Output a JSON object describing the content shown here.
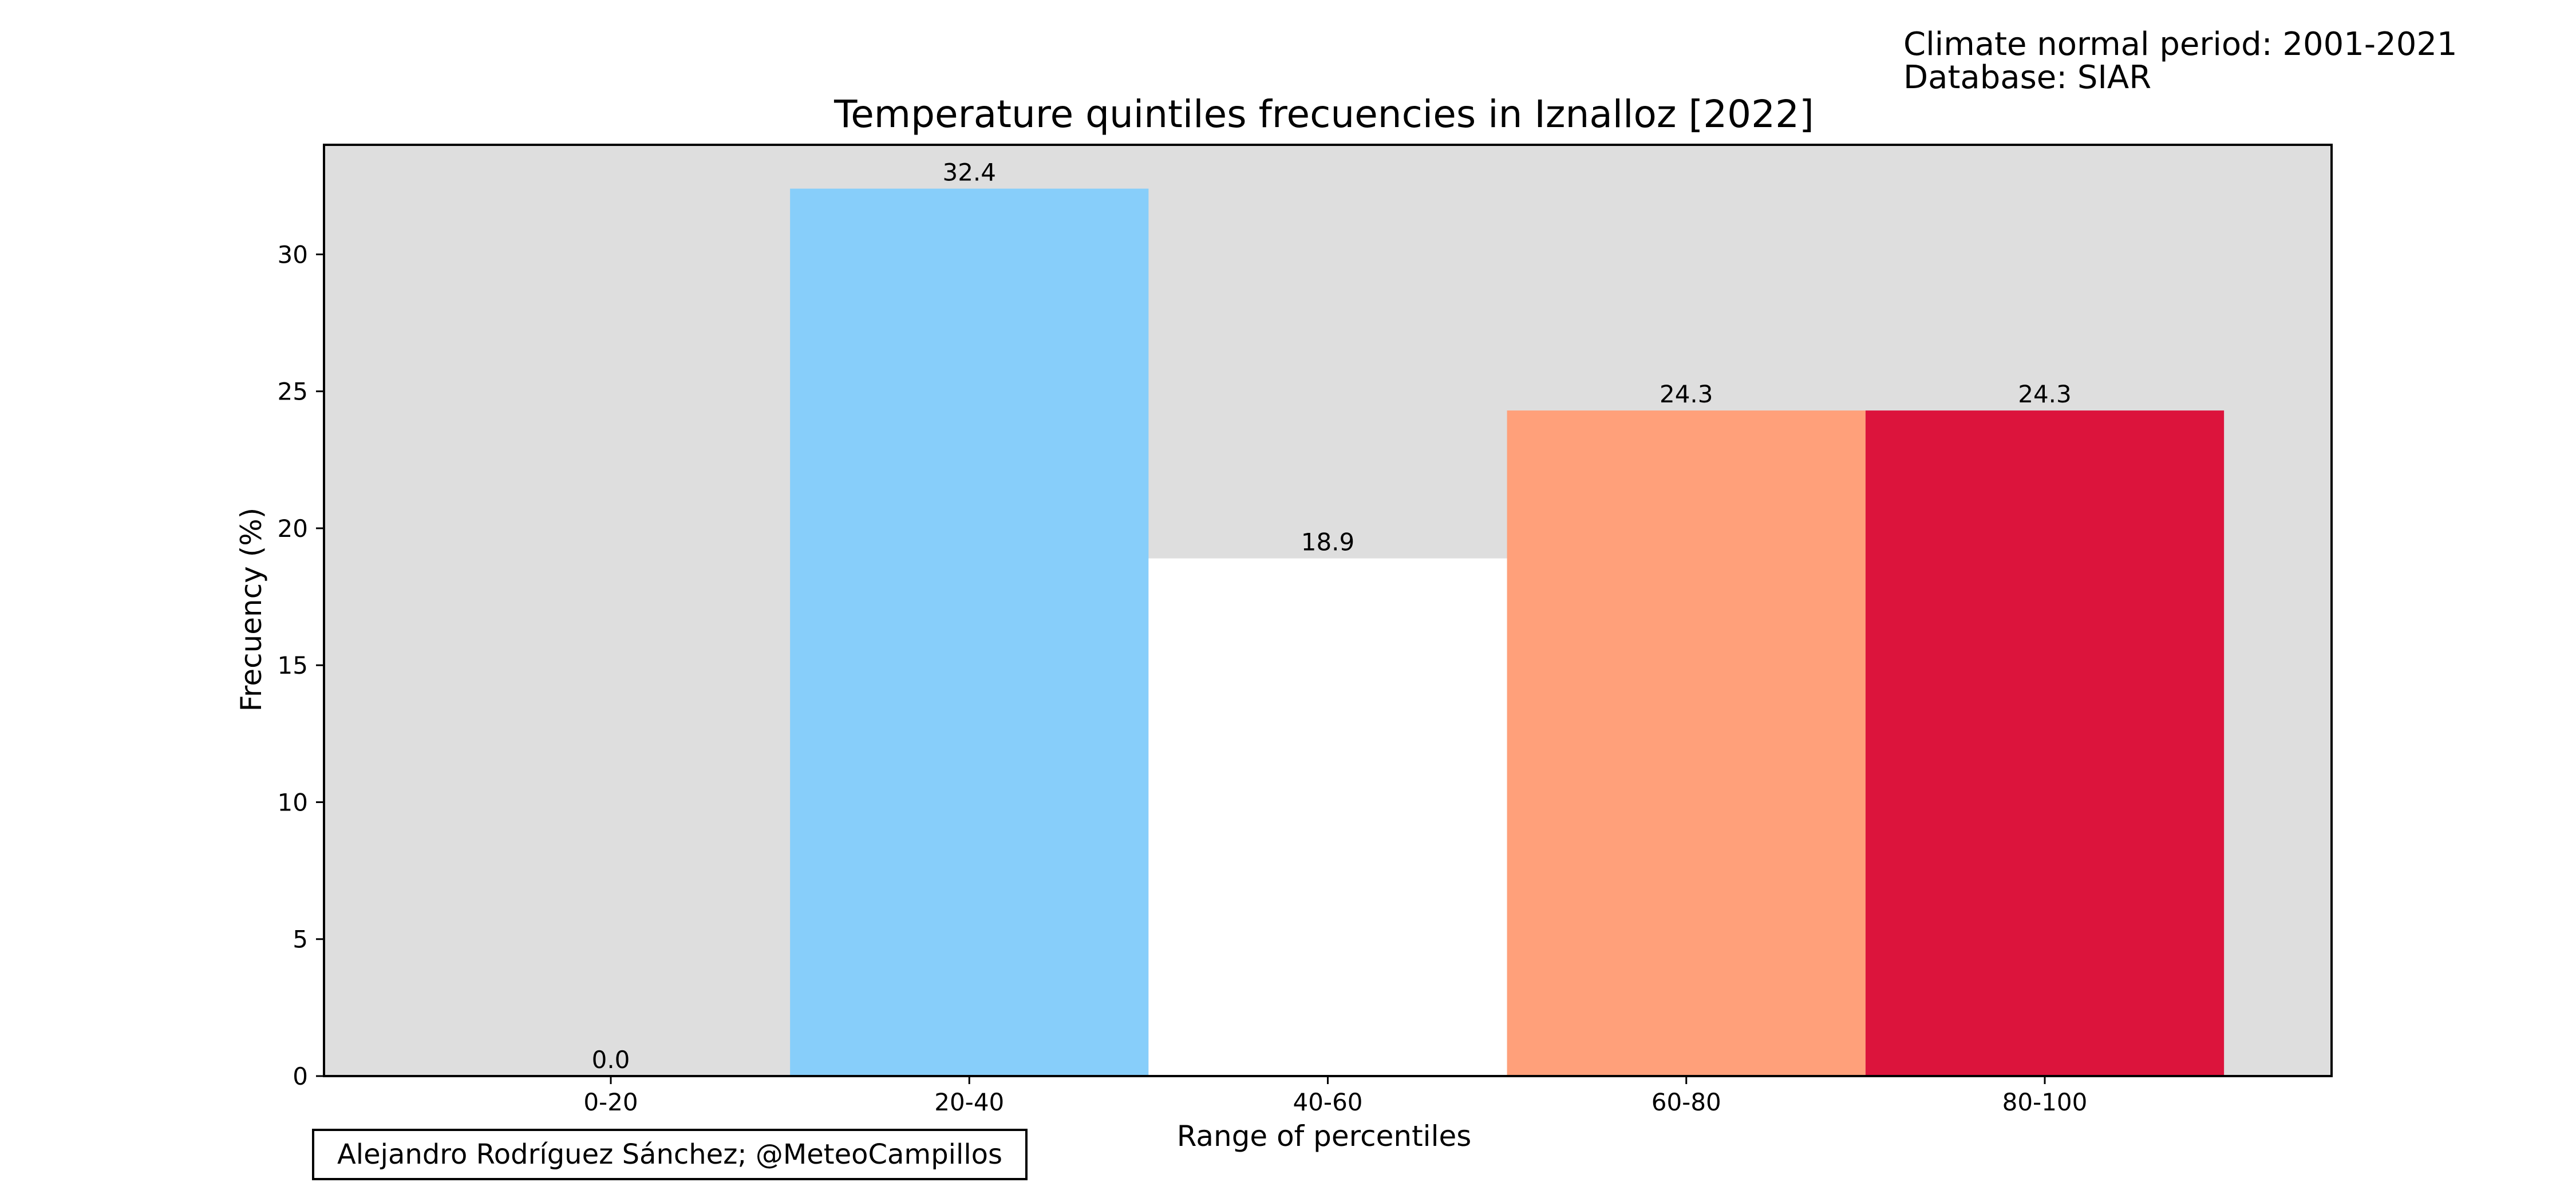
{
  "header": {
    "climate_normal": "Climate normal period: 2001-2021",
    "database": "Database: SIAR"
  },
  "credit": "Alejandro Rodríguez Sánchez; @MeteoCampillos",
  "chart_data": {
    "type": "bar",
    "title": "Temperature quintiles frecuencies in Iznalloz [2022]",
    "xlabel": "Range of percentiles",
    "ylabel": "Frecuency (%)",
    "categories": [
      "0-20",
      "20-40",
      "40-60",
      "60-80",
      "80-100"
    ],
    "values": [
      0.0,
      32.4,
      18.9,
      24.3,
      24.3
    ],
    "value_labels": [
      "0.0",
      "32.4",
      "18.9",
      "24.3",
      "24.3"
    ],
    "colors": [
      "#1e90ff",
      "#87cefa",
      "#ffffff",
      "#ffa07a",
      "#dc143c"
    ],
    "plot_background": "#dedede",
    "ylim": [
      0,
      34
    ],
    "yticks": [
      0,
      5,
      10,
      15,
      20,
      25,
      30
    ],
    "grid": false,
    "legend": "none"
  }
}
